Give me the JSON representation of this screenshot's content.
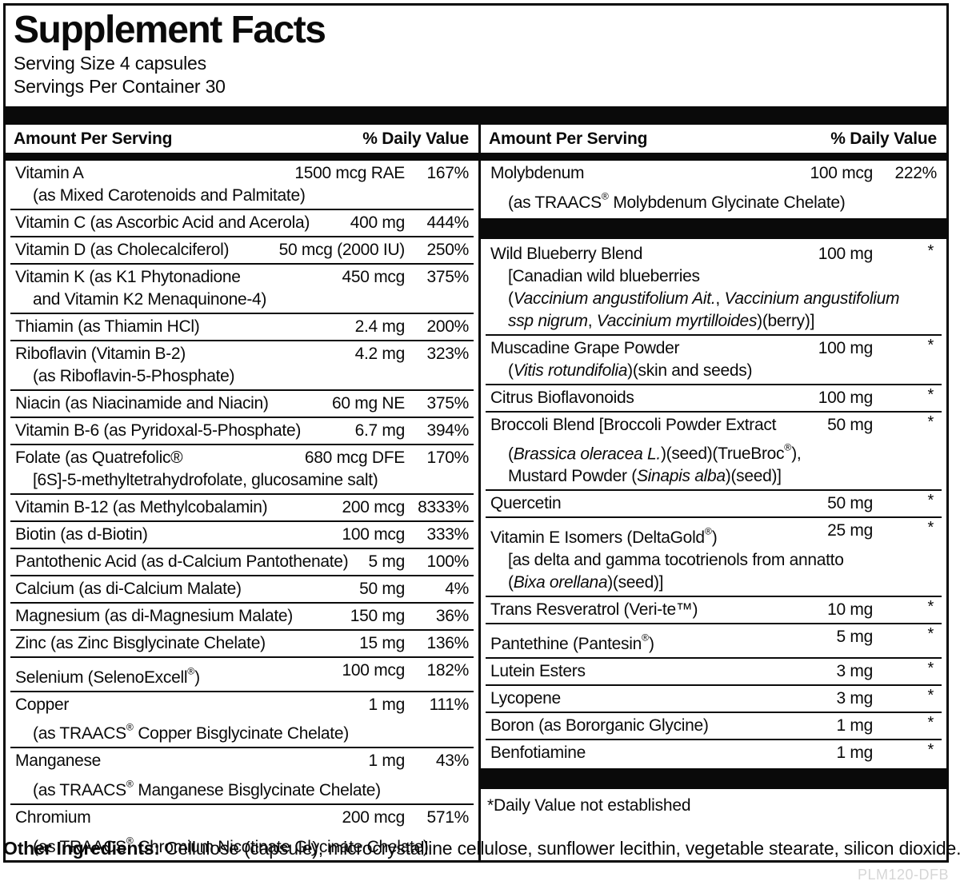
{
  "label": {
    "title": "Supplement Facts",
    "serving_size": "Serving Size 4 capsules",
    "servings_per_container": "Servings Per Container 30",
    "column_header": {
      "amount": "Amount Per Serving",
      "daily_value": "% Daily Value"
    },
    "footnote": "*Daily Value not established",
    "colors": {
      "ink": "#0a0a0a",
      "code_gray": "#d6d6d6"
    },
    "columns": {
      "left": {
        "rows": [
          {
            "name": "Vitamin A",
            "amount": "1500 mcg RAE",
            "dv": "167%",
            "subs": [
              [
                {
                  "t": "(as Mixed Carotenoids and Palmitate)"
                }
              ]
            ]
          },
          {
            "name": "Vitamin C (as Ascorbic Acid and Acerola)",
            "amount": "400 mg",
            "dv": "444%"
          },
          {
            "name": "Vitamin D (as Cholecalciferol)",
            "amount": "50 mcg (2000 IU)",
            "dv": "250%"
          },
          {
            "name": "Vitamin K (as K1 Phytonadione",
            "amount": "450 mcg",
            "dv": "375%",
            "subs": [
              [
                {
                  "t": "and Vitamin K2 Menaquinone-4)"
                }
              ]
            ]
          },
          {
            "name": "Thiamin (as Thiamin HCl)",
            "amount": "2.4 mg",
            "dv": "200%"
          },
          {
            "name": "Riboflavin (Vitamin B-2)",
            "amount": "4.2 mg",
            "dv": "323%",
            "subs": [
              [
                {
                  "t": "(as Riboflavin-5-Phosphate)"
                }
              ]
            ]
          },
          {
            "name": "Niacin (as Niacinamide and Niacin)",
            "amount": "60 mg NE",
            "dv": "375%"
          },
          {
            "name": "Vitamin B-6 (as Pyridoxal-5-Phosphate)",
            "amount": "6.7 mg",
            "dv": "394%"
          },
          {
            "name": "Folate (as Quatrefolic®",
            "amount": "680 mcg DFE",
            "dv": "170%",
            "reg_style": "inline",
            "subs": [
              [
                {
                  "t": "[6S]-5-methyltetrahydrofolate, glucosamine salt)"
                }
              ]
            ]
          },
          {
            "name": "Vitamin B-12 (as Methylcobalamin)",
            "amount": "200 mcg",
            "dv": "8333%"
          },
          {
            "name": "Biotin (as d-Biotin)",
            "amount": "100 mcg",
            "dv": "333%"
          },
          {
            "name": "Pantothenic Acid (as d-Calcium Pantothenate)",
            "amount": "5 mg",
            "dv": "100%"
          },
          {
            "name": "Calcium (as di-Calcium Malate)",
            "amount": "50 mg",
            "dv": "4%"
          },
          {
            "name": "Magnesium (as di-Magnesium Malate)",
            "amount": "150 mg",
            "dv": "36%"
          },
          {
            "name": "Zinc (as Zinc Bisglycinate Chelate)",
            "amount": "15 mg",
            "dv": "136%"
          },
          {
            "name": "Selenium (SelenoExcell®)",
            "amount": "100 mcg",
            "dv": "182%"
          },
          {
            "name": "Copper",
            "amount": "1 mg",
            "dv": "111%",
            "subs": [
              [
                {
                  "t": "(as TRAACS® Copper Bisglycinate Chelate)"
                }
              ]
            ]
          },
          {
            "name": "Manganese",
            "amount": "1 mg",
            "dv": "43%",
            "subs": [
              [
                {
                  "t": "(as TRAACS® Manganese Bisglycinate Chelate)"
                }
              ]
            ]
          },
          {
            "name": "Chromium",
            "amount": "200 mcg",
            "dv": "571%",
            "subs": [
              [
                {
                  "t": "(as TRAACS® Chromium Nicotinate Glycinate Chelate)"
                }
              ]
            ]
          }
        ]
      },
      "right": {
        "groups": [
          {
            "rows": [
              {
                "name": "Molybdenum",
                "amount": "100 mcg",
                "dv": "222%",
                "subs": [
                  [
                    {
                      "t": "(as TRAACS® Molybdenum Glycinate Chelate)"
                    }
                  ]
                ]
              }
            ]
          },
          {
            "rows": [
              {
                "name": "Wild Blueberry Blend",
                "amount": "100 mg",
                "dv": "*",
                "subs": [
                  [
                    {
                      "t": "[Canadian wild blueberries"
                    }
                  ],
                  [
                    {
                      "t": "("
                    },
                    {
                      "t": "Vaccinium angustifolium Ait.",
                      "i": true
                    },
                    {
                      "t": ", "
                    },
                    {
                      "t": "Vaccinium angustifolium",
                      "i": true
                    }
                  ],
                  [
                    {
                      "t": "ssp nigrum",
                      "i": true
                    },
                    {
                      "t": ", "
                    },
                    {
                      "t": "Vaccinium myrtilloides",
                      "i": true
                    },
                    {
                      "t": ")(berry)]"
                    }
                  ]
                ]
              },
              {
                "name": "Muscadine Grape Powder",
                "amount": "100 mg",
                "dv": "*",
                "subs": [
                  [
                    {
                      "t": "("
                    },
                    {
                      "t": "Vitis rotundifolia",
                      "i": true
                    },
                    {
                      "t": ")(skin and seeds)"
                    }
                  ]
                ]
              },
              {
                "name": "Citrus Bioflavonoids",
                "amount": "100 mg",
                "dv": "*"
              },
              {
                "name": "Broccoli Blend [Broccoli Powder Extract",
                "amount": "50 mg",
                "dv": "*",
                "subs": [
                  [
                    {
                      "t": "("
                    },
                    {
                      "t": "Brassica oleracea L.",
                      "i": true
                    },
                    {
                      "t": ")(seed)(TrueBroc®),"
                    }
                  ],
                  [
                    {
                      "t": "Mustard Powder ("
                    },
                    {
                      "t": "Sinapis alba",
                      "i": true
                    },
                    {
                      "t": ")(seed)]"
                    }
                  ]
                ]
              },
              {
                "name": "Quercetin",
                "amount": "50 mg",
                "dv": "*"
              },
              {
                "name": "Vitamin E Isomers (DeltaGold®)",
                "amount": "25 mg",
                "dv": "*",
                "subs": [
                  [
                    {
                      "t": "[as delta and gamma tocotrienols from annatto"
                    }
                  ],
                  [
                    {
                      "t": "("
                    },
                    {
                      "t": "Bixa orellana",
                      "i": true
                    },
                    {
                      "t": ")(seed)]"
                    }
                  ]
                ]
              },
              {
                "name": "Trans Resveratrol (Veri-te™)",
                "amount": "10 mg",
                "dv": "*"
              },
              {
                "name": "Pantethine (Pantesin®)",
                "amount": "5 mg",
                "dv": "*"
              },
              {
                "name": "Lutein Esters",
                "amount": "3 mg",
                "dv": "*"
              },
              {
                "name": "Lycopene",
                "amount": "3 mg",
                "dv": "*"
              },
              {
                "name": "Boron (as Bororganic Glycine)",
                "amount": "1 mg",
                "dv": "*"
              },
              {
                "name": "Benfotiamine",
                "amount": "1 mg",
                "dv": "*"
              }
            ]
          }
        ]
      }
    }
  },
  "other_ingredients": {
    "label": "Other Ingredients:",
    "text": " Cellulose (capsule), microcrystalline cellulose, sunflower lecithin, vegetable stearate, silicon dioxide."
  },
  "code": "PLM120-DFB"
}
